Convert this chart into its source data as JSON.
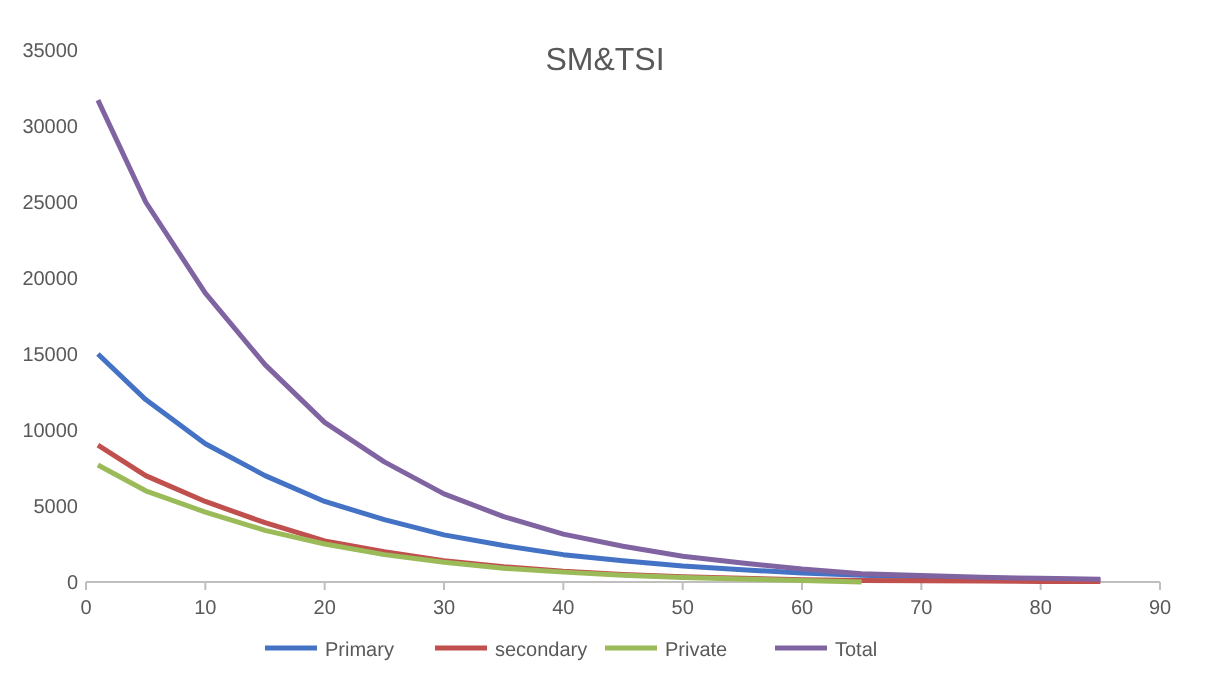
{
  "chart_data": {
    "type": "line",
    "title": "SM&TSI",
    "x": [
      1,
      5,
      10,
      15,
      20,
      25,
      30,
      35,
      40,
      45,
      50,
      55,
      60,
      65,
      70,
      75,
      80,
      85
    ],
    "series": [
      {
        "name": "Primary",
        "color": "#4472c4",
        "values": [
          15000,
          12000,
          9100,
          7000,
          5300,
          4100,
          3100,
          2400,
          1800,
          1400,
          1050,
          800,
          600,
          450,
          350,
          250,
          200,
          150
        ]
      },
      {
        "name": "secondary",
        "color": "#c0504d",
        "values": [
          9000,
          7000,
          5300,
          3900,
          2700,
          2000,
          1400,
          1000,
          700,
          500,
          350,
          250,
          150,
          100,
          80,
          60,
          40,
          30
        ]
      },
      {
        "name": "Private",
        "color": "#9bbb59",
        "values": [
          7700,
          6000,
          4600,
          3400,
          2500,
          1800,
          1300,
          900,
          650,
          450,
          300,
          200,
          100,
          0,
          null,
          null,
          null,
          null
        ]
      },
      {
        "name": "Total",
        "color": "#8064a2",
        "values": [
          31700,
          25000,
          19000,
          14300,
          10500,
          7900,
          5800,
          4300,
          3150,
          2350,
          1700,
          1250,
          850,
          550,
          430,
          310,
          240,
          180
        ]
      }
    ],
    "xlim": [
      0,
      90
    ],
    "xticks": [
      0,
      10,
      20,
      30,
      40,
      50,
      60,
      70,
      80,
      90
    ],
    "ylim": [
      0,
      35000
    ],
    "yticks": [
      0,
      5000,
      10000,
      15000,
      20000,
      25000,
      30000,
      35000
    ],
    "grid": false,
    "legend": "bottom",
    "marker": "none",
    "line_style": "solid"
  }
}
